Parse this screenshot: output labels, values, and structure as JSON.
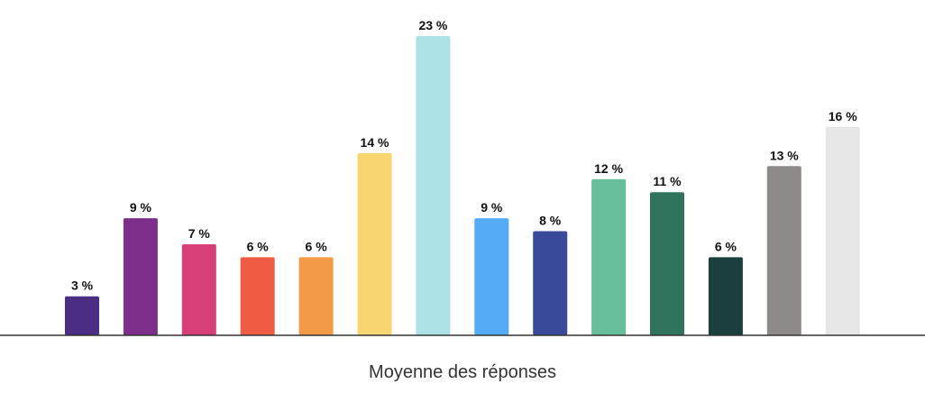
{
  "chart_data": {
    "type": "bar",
    "categories": [],
    "values": [
      3,
      9,
      7,
      6,
      6,
      14,
      23,
      9,
      8,
      12,
      11,
      6,
      13,
      16
    ],
    "labels": [
      "3 %",
      "9 %",
      "7 %",
      "6 %",
      "6 %",
      "14 %",
      "23 %",
      "9 %",
      "8 %",
      "12 %",
      "11 %",
      "6 %",
      "13 %",
      "16 %"
    ],
    "colors": [
      "#4b2e83",
      "#7d2d8a",
      "#d63f78",
      "#ef5b43",
      "#f29a45",
      "#f8d56e",
      "#ace2e6",
      "#56abf7",
      "#3a4a9b",
      "#66be9a",
      "#30745d",
      "#1b3f3d",
      "#8e8a89",
      "#e6e6e6"
    ],
    "xlabel": "Moyenne des réponses",
    "ylabel": "",
    "ylim": [
      0,
      23
    ],
    "grid": false,
    "legend": "none"
  }
}
